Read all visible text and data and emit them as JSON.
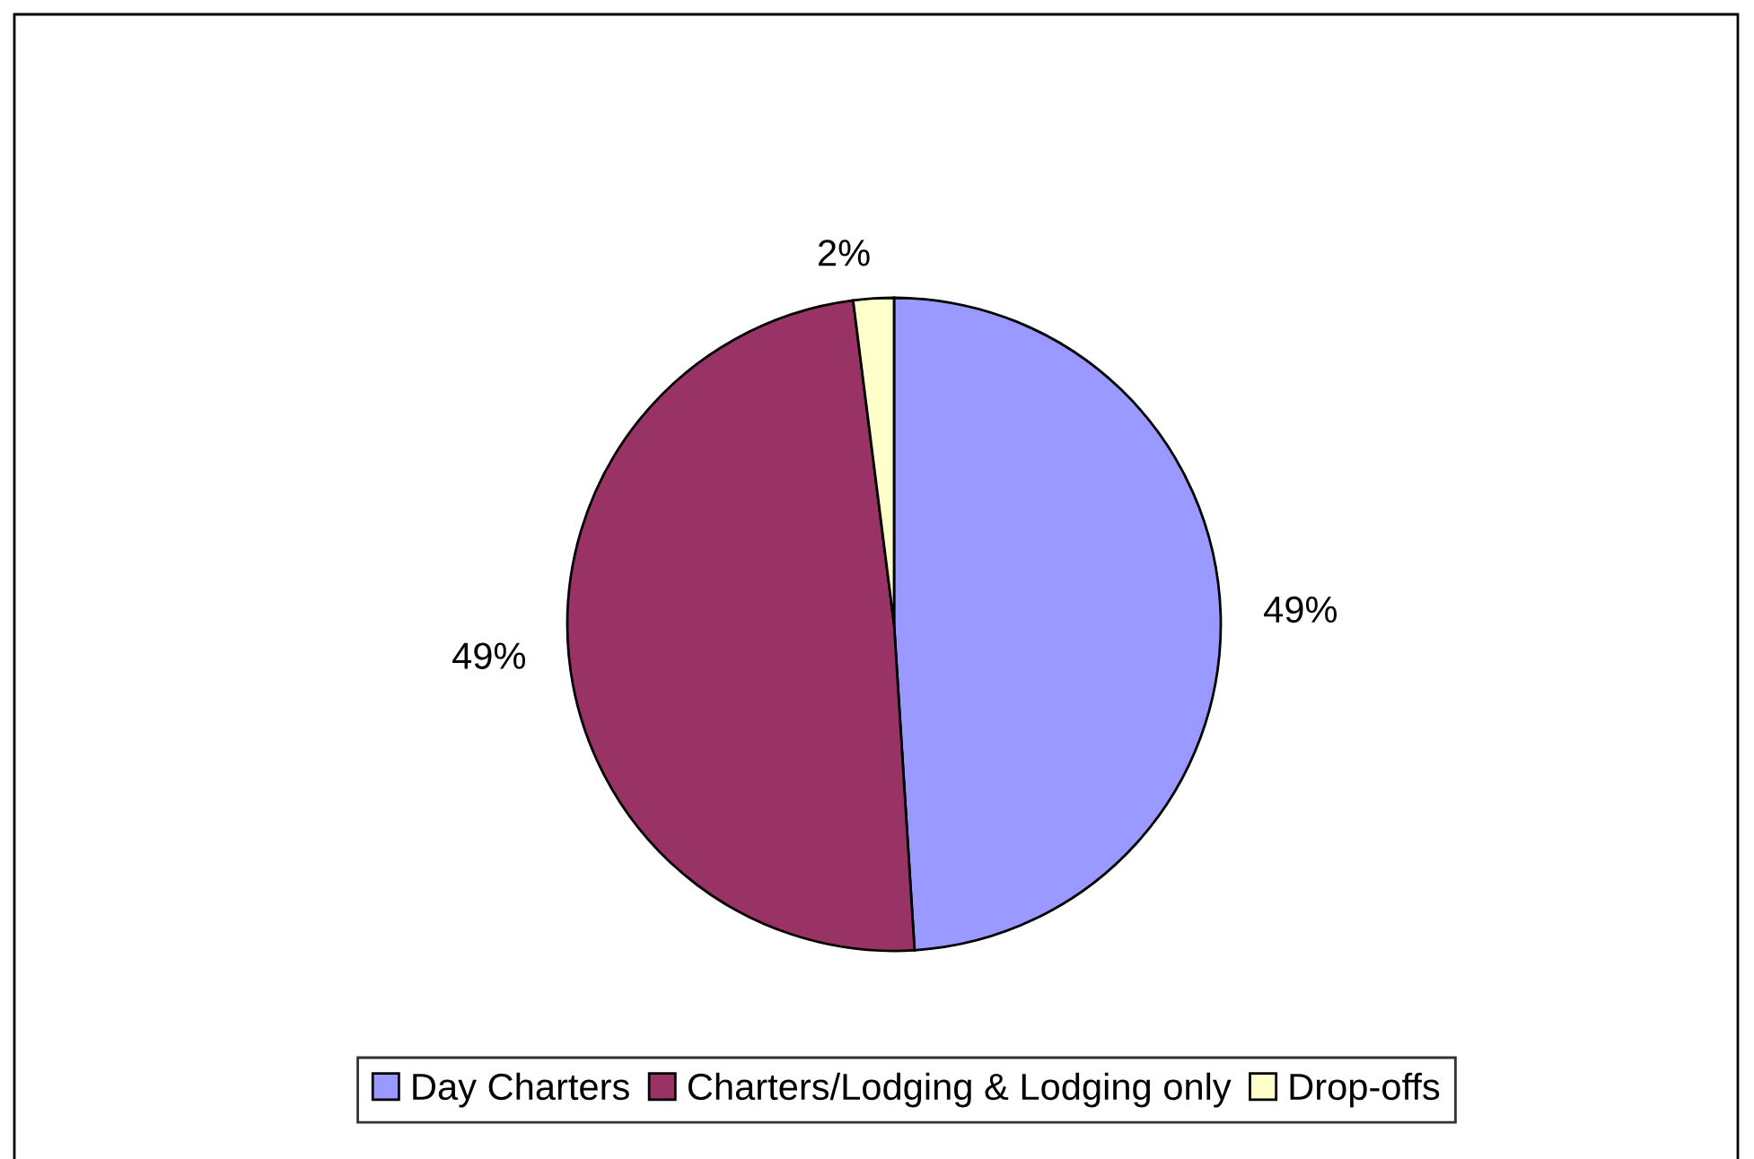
{
  "chart_data": {
    "type": "pie",
    "categories": [
      "Day Charters",
      "Charters/Lodging & Lodging only",
      "Drop-offs"
    ],
    "values": [
      49,
      49,
      2
    ],
    "colors": [
      "#9999ff",
      "#993366",
      "#ffffcc"
    ],
    "value_labels": [
      "49%",
      "49%",
      "2%"
    ],
    "legend": "bottom"
  }
}
